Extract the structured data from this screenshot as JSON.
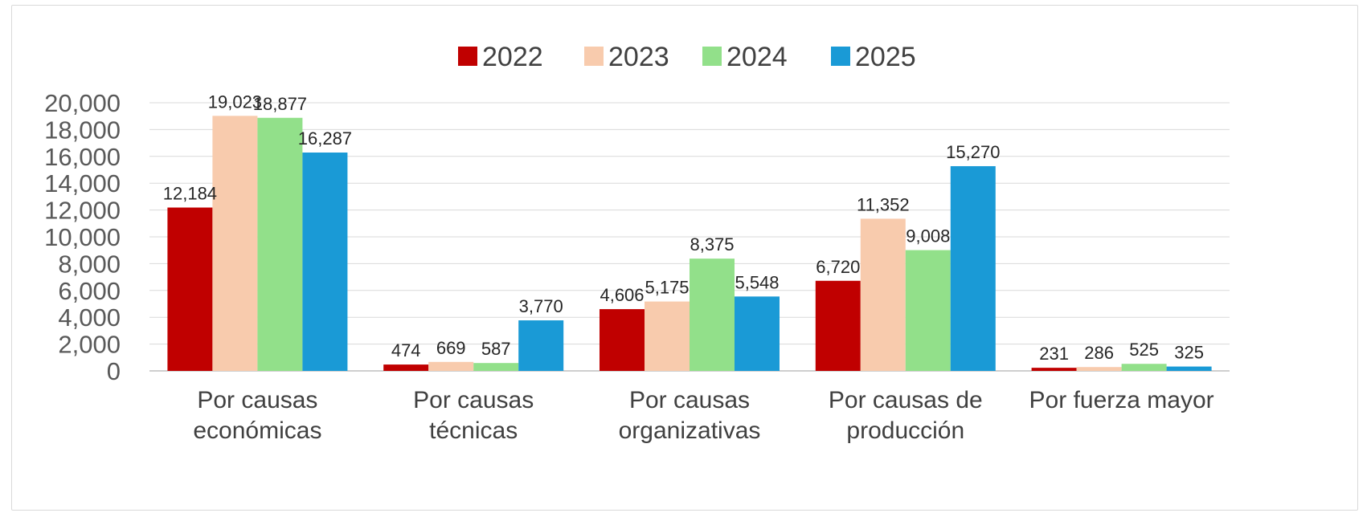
{
  "chart_data": {
    "type": "bar",
    "title": "",
    "xlabel": "",
    "ylabel": "",
    "categories": [
      [
        "Por causas",
        "económicas"
      ],
      [
        "Por causas",
        "técnicas"
      ],
      [
        "Por causas",
        "organizativas"
      ],
      [
        "Por causas de",
        "producción"
      ],
      [
        "Por fuerza mayor"
      ]
    ],
    "series": [
      {
        "name": "2022",
        "color": "#c00000",
        "values": [
          12184,
          474,
          4606,
          6720,
          231
        ],
        "labels": [
          "12,184",
          "474",
          "4,606",
          "6,720",
          "231"
        ]
      },
      {
        "name": "2023",
        "color": "#f8cbad",
        "values": [
          19023,
          669,
          5175,
          11352,
          286
        ],
        "labels": [
          "19,023",
          "669",
          "5,175",
          "11,352",
          "286"
        ]
      },
      {
        "name": "2024",
        "color": "#92e08a",
        "values": [
          18877,
          587,
          8375,
          9008,
          525
        ],
        "labels": [
          "18,877",
          "587",
          "8,375",
          "9,008",
          "525"
        ]
      },
      {
        "name": "2025",
        "color": "#1a9ad6",
        "values": [
          16287,
          3770,
          5548,
          15270,
          325
        ],
        "labels": [
          "16,287",
          "3,770",
          "5,548",
          "15,270",
          "325"
        ]
      }
    ],
    "ylim": [
      0,
      20000
    ],
    "yticks": [
      0,
      2000,
      4000,
      6000,
      8000,
      10000,
      12000,
      14000,
      16000,
      18000,
      20000
    ],
    "ytick_labels": [
      "0",
      "2,000",
      "4,000",
      "6,000",
      "8,000",
      "10,000",
      "12,000",
      "14,000",
      "16,000",
      "18,000",
      "20,000"
    ],
    "grid": true,
    "legend_position": "top"
  }
}
